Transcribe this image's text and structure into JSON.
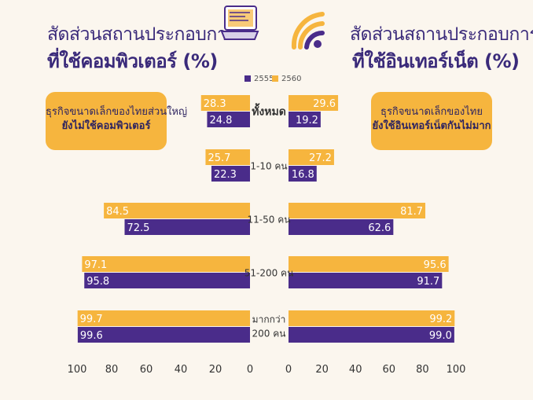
{
  "left_title": {
    "line1": "สัดส่วนสถานประกอบการ",
    "line2": "ที่ใช้คอมพิวเตอร์ (%)"
  },
  "right_title": {
    "line1": "สัดส่วนสถานประกอบการ",
    "line2": "ที่ใช้อินเทอร์เน็ต (%)"
  },
  "left_callout": {
    "line1": "ธุรกิจขนาดเล็กของไทยส่วนใหญ่",
    "line2": "ยังไม่ใช้คอมพิวเตอร์"
  },
  "right_callout": {
    "line1": "ธุรกิจขนาดเล็กของไทย",
    "line2": "ยังใช้อินเทอร์เน็ตกันไม่มาก"
  },
  "legend": [
    {
      "label": "2555",
      "color": "#4a2c8a"
    },
    {
      "label": "2560",
      "color": "#f6b53e"
    }
  ],
  "icons": {
    "left": "laptop-icon",
    "right": "wifi-icon"
  },
  "colors": {
    "series_2555": "#4a2c8a",
    "series_2560": "#f6b53e",
    "title": "#3a2a7a",
    "callout": "#f6b53e"
  },
  "chart_data": [
    {
      "type": "bar",
      "orientation": "horizontal",
      "direction": "right-to-left",
      "title": "สัดส่วนสถานประกอบการที่ใช้คอมพิวเตอร์ (%)",
      "categories": [
        "ทั้งหมด",
        "1-10 คน",
        "11-50 คน",
        "51-200 คน",
        "มากกว่า 200 คน"
      ],
      "series": [
        {
          "name": "2560",
          "values": [
            28.3,
            25.7,
            84.5,
            97.1,
            99.7
          ]
        },
        {
          "name": "2555",
          "values": [
            24.8,
            22.3,
            72.5,
            95.8,
            99.6
          ]
        }
      ],
      "xlim": [
        0,
        100
      ],
      "ticks": [
        "100",
        "80",
        "60",
        "40",
        "20",
        "0"
      ]
    },
    {
      "type": "bar",
      "orientation": "horizontal",
      "direction": "left-to-right",
      "title": "สัดส่วนสถานประกอบการที่ใช้อินเทอร์เน็ต (%)",
      "categories": [
        "ทั้งหมด",
        "1-10 คน",
        "11-50 คน",
        "51-200 คน",
        "มากกว่า 200 คน"
      ],
      "series": [
        {
          "name": "2560",
          "values": [
            29.6,
            27.2,
            81.7,
            95.6,
            99.2
          ]
        },
        {
          "name": "2555",
          "values": [
            19.2,
            16.8,
            62.6,
            91.7,
            99.0
          ]
        }
      ],
      "xlim": [
        0,
        100
      ],
      "ticks": [
        "0",
        "20",
        "40",
        "60",
        "80",
        "100"
      ]
    }
  ],
  "category_labels": [
    {
      "lines": [
        "ทั้งหมด"
      ]
    },
    {
      "lines": [
        "1-10 คน"
      ]
    },
    {
      "lines": [
        "11-50 คน"
      ]
    },
    {
      "lines": [
        "51-200 คน"
      ]
    },
    {
      "lines": [
        "มากกว่า",
        "200 คน"
      ]
    }
  ]
}
